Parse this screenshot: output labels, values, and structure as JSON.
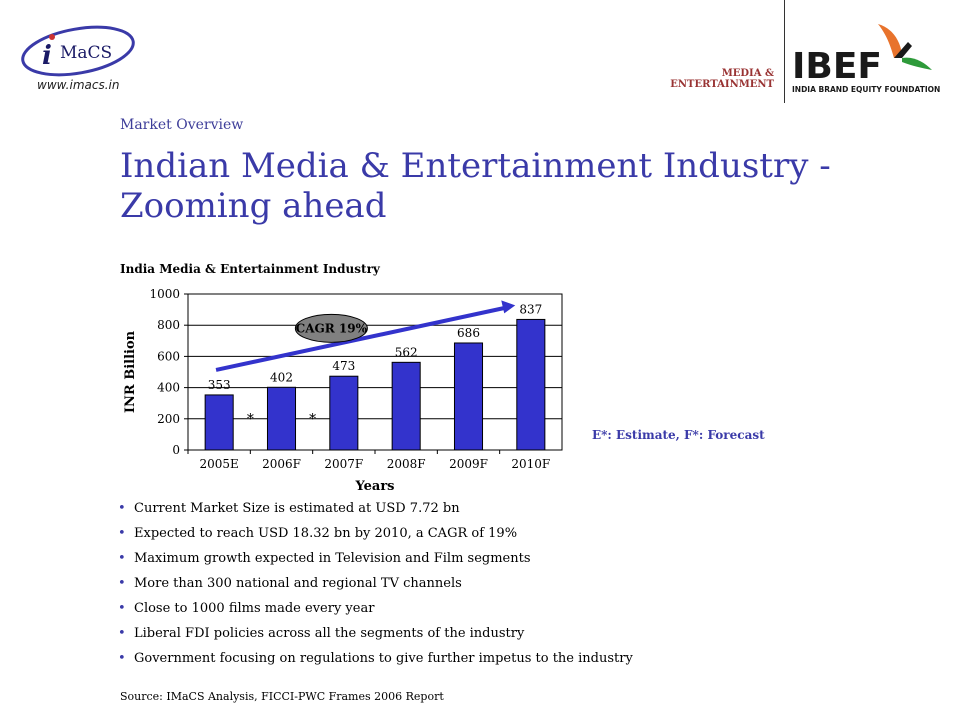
{
  "header": {
    "url": "www.imacs.in",
    "logo_left_i": "i",
    "logo_left_text": "MaCS",
    "media_label_line1": "MEDIA &",
    "media_label_line2": "ENTERTAINMENT",
    "ibef_text": "IBEF",
    "ibef_sub": "INDIA BRAND EQUITY FOUNDATION"
  },
  "section_label": "Market Overview",
  "page_title": "Indian Media & Entertainment Industry - Zooming ahead",
  "note": "E*: Estimate, F*: Forecast",
  "bullets": [
    "Current Market Size is estimated at  USD 7.72 bn",
    "Expected to reach USD 18.32 bn by 2010, a CAGR of 19%",
    "Maximum growth expected in Television and Film segments",
    "More than 300 national and regional TV channels",
    "Close to 1000 films made every year",
    "Liberal FDI policies across all the segments of the industry",
    "Government focusing on regulations to give further impetus to the industry"
  ],
  "source": "Source: IMaCS Analysis, FICCI-PWC Frames 2006 Report",
  "colors": {
    "bar": "#3333cc",
    "title": "#3a3aa8",
    "bubble": "#808080",
    "accent_red": "#993333"
  },
  "chart_data": {
    "type": "bar",
    "title": "India Media & Entertainment  Industry",
    "xlabel": "Years",
    "ylabel": "INR Billion",
    "categories": [
      "2005E",
      "2006F",
      "2007F",
      "2008F",
      "2009F",
      "2010F"
    ],
    "values": [
      353,
      402,
      473,
      562,
      686,
      837
    ],
    "ylim": [
      0,
      1000
    ],
    "yticks": [
      0,
      200,
      400,
      600,
      800,
      1000
    ],
    "grid": true,
    "annotation": "CAGR 19%",
    "markers": [
      "*",
      "*"
    ]
  }
}
